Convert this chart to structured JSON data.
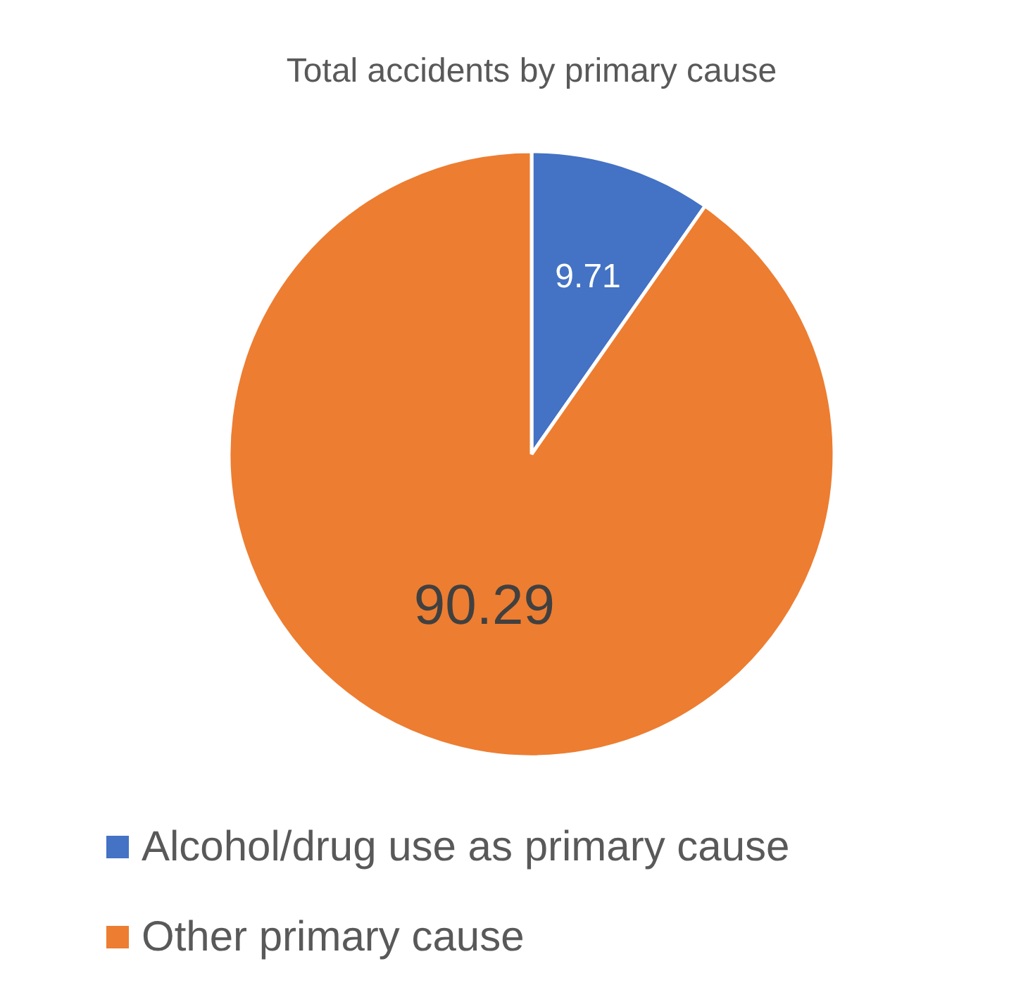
{
  "chart_data": {
    "type": "pie",
    "title": "Total accidents by primary cause",
    "categories": [
      "Alcohol/drug use as primary cause",
      "Other primary cause"
    ],
    "values": [
      9.71,
      90.29
    ],
    "colors": [
      "#4472c4",
      "#ed7d31"
    ],
    "data_labels": true,
    "legend": "bottom"
  }
}
